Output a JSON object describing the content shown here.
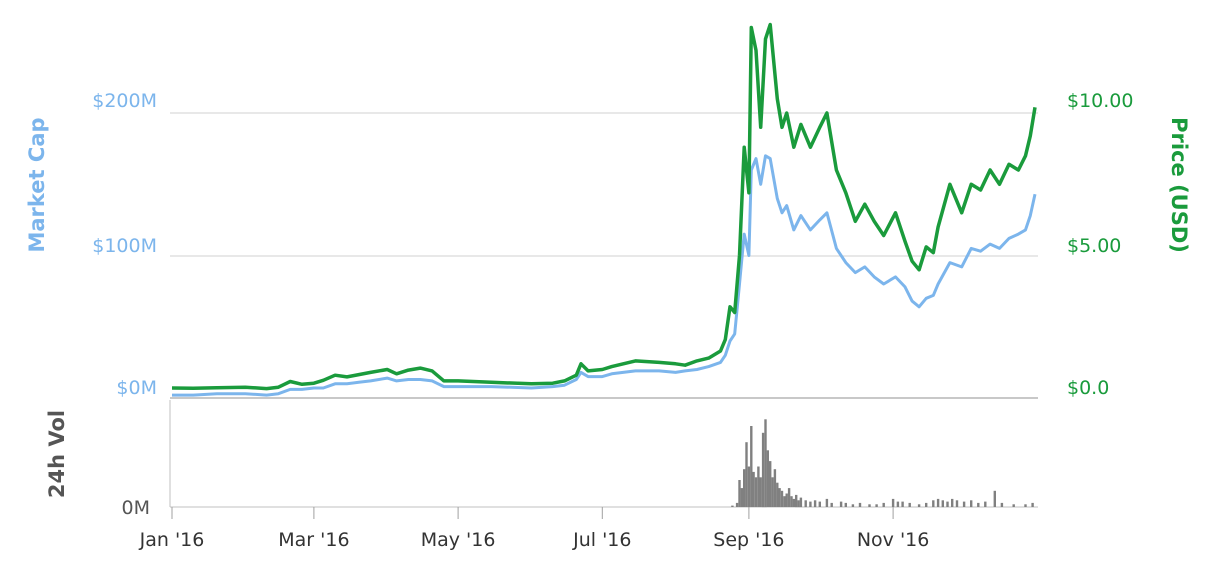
{
  "chart_data": {
    "type": "line",
    "x_range": [
      "2016-01-01",
      "2016-12-31"
    ],
    "y_left": {
      "label": "Market Cap",
      "ticks": [
        "$0M",
        "$100M",
        "$200M"
      ],
      "tick_values": [
        0,
        100,
        200
      ],
      "unit": "M USD",
      "range": [
        0,
        200
      ]
    },
    "y_right": {
      "label": "Price (USD)",
      "ticks": [
        "$0.0",
        "$5.00",
        "$10.00"
      ],
      "tick_values": [
        0,
        5,
        10
      ],
      "range": [
        0,
        10
      ]
    },
    "volume_axis": {
      "label": "24h Vol",
      "ticks": [
        "0M"
      ]
    },
    "x_ticks": [
      {
        "label": "Jan '16",
        "date": "2016-01-01"
      },
      {
        "label": "Mar '16",
        "date": "2016-03-01"
      },
      {
        "label": "May '16",
        "date": "2016-05-01"
      },
      {
        "label": "Jul '16",
        "date": "2016-07-01"
      },
      {
        "label": "Sep '16",
        "date": "2016-09-01"
      },
      {
        "label": "Nov '16",
        "date": "2016-11-01"
      }
    ],
    "colors": {
      "market_cap": "#7cb5ec",
      "price": "#1a9b3c",
      "volume": "#808080",
      "left_axis_text": "#7cb5ec",
      "right_axis_text": "#1a9b3c",
      "volume_axis_text": "#555555"
    },
    "series": [
      {
        "key": "price",
        "axis": "right",
        "points": [
          [
            "2016-01-01",
            0.35
          ],
          [
            "2016-01-10",
            0.34
          ],
          [
            "2016-01-20",
            0.36
          ],
          [
            "2016-02-01",
            0.38
          ],
          [
            "2016-02-10",
            0.33
          ],
          [
            "2016-02-15",
            0.38
          ],
          [
            "2016-02-20",
            0.58
          ],
          [
            "2016-02-25",
            0.48
          ],
          [
            "2016-03-01",
            0.52
          ],
          [
            "2016-03-05",
            0.62
          ],
          [
            "2016-03-10",
            0.8
          ],
          [
            "2016-03-15",
            0.74
          ],
          [
            "2016-03-20",
            0.82
          ],
          [
            "2016-03-25",
            0.9
          ],
          [
            "2016-04-01",
            1.0
          ],
          [
            "2016-04-05",
            0.85
          ],
          [
            "2016-04-10",
            0.98
          ],
          [
            "2016-04-15",
            1.05
          ],
          [
            "2016-04-20",
            0.95
          ],
          [
            "2016-04-25",
            0.6
          ],
          [
            "2016-05-01",
            0.6
          ],
          [
            "2016-05-15",
            0.55
          ],
          [
            "2016-06-01",
            0.5
          ],
          [
            "2016-06-10",
            0.52
          ],
          [
            "2016-06-15",
            0.6
          ],
          [
            "2016-06-20",
            0.8
          ],
          [
            "2016-06-22",
            1.2
          ],
          [
            "2016-06-25",
            0.95
          ],
          [
            "2016-07-01",
            1.0
          ],
          [
            "2016-07-05",
            1.1
          ],
          [
            "2016-07-15",
            1.3
          ],
          [
            "2016-07-25",
            1.25
          ],
          [
            "2016-08-01",
            1.2
          ],
          [
            "2016-08-05",
            1.15
          ],
          [
            "2016-08-10",
            1.3
          ],
          [
            "2016-08-15",
            1.4
          ],
          [
            "2016-08-20",
            1.65
          ],
          [
            "2016-08-22",
            2.05
          ],
          [
            "2016-08-24",
            3.2
          ],
          [
            "2016-08-26",
            3.0
          ],
          [
            "2016-08-28",
            5.0
          ],
          [
            "2016-08-30",
            8.8
          ],
          [
            "2016-09-01",
            7.2
          ],
          [
            "2016-09-02",
            13.0
          ],
          [
            "2016-09-04",
            12.2
          ],
          [
            "2016-09-06",
            9.5
          ],
          [
            "2016-09-08",
            12.6
          ],
          [
            "2016-09-10",
            13.1
          ],
          [
            "2016-09-13",
            10.5
          ],
          [
            "2016-09-15",
            9.5
          ],
          [
            "2016-09-17",
            10.0
          ],
          [
            "2016-09-20",
            8.8
          ],
          [
            "2016-09-23",
            9.6
          ],
          [
            "2016-09-27",
            8.8
          ],
          [
            "2016-10-01",
            9.5
          ],
          [
            "2016-10-04",
            10.0
          ],
          [
            "2016-10-08",
            8.0
          ],
          [
            "2016-10-12",
            7.2
          ],
          [
            "2016-10-16",
            6.2
          ],
          [
            "2016-10-20",
            6.8
          ],
          [
            "2016-10-24",
            6.2
          ],
          [
            "2016-10-28",
            5.7
          ],
          [
            "2016-11-02",
            6.5
          ],
          [
            "2016-11-06",
            5.5
          ],
          [
            "2016-11-09",
            4.8
          ],
          [
            "2016-11-12",
            4.5
          ],
          [
            "2016-11-15",
            5.3
          ],
          [
            "2016-11-18",
            5.1
          ],
          [
            "2016-11-20",
            6.0
          ],
          [
            "2016-11-25",
            7.5
          ],
          [
            "2016-11-30",
            6.5
          ],
          [
            "2016-12-04",
            7.5
          ],
          [
            "2016-12-08",
            7.3
          ],
          [
            "2016-12-12",
            8.0
          ],
          [
            "2016-12-16",
            7.5
          ],
          [
            "2016-12-20",
            8.2
          ],
          [
            "2016-12-24",
            8.0
          ],
          [
            "2016-12-27",
            8.5
          ],
          [
            "2016-12-29",
            9.2
          ],
          [
            "2016-12-31",
            10.2
          ]
        ]
      },
      {
        "key": "market_cap",
        "axis": "left",
        "points": [
          [
            "2016-01-01",
            2
          ],
          [
            "2016-01-10",
            2
          ],
          [
            "2016-01-20",
            3
          ],
          [
            "2016-02-01",
            3
          ],
          [
            "2016-02-10",
            2
          ],
          [
            "2016-02-15",
            3
          ],
          [
            "2016-02-20",
            6
          ],
          [
            "2016-02-25",
            6
          ],
          [
            "2016-03-01",
            7
          ],
          [
            "2016-03-05",
            7
          ],
          [
            "2016-03-10",
            10
          ],
          [
            "2016-03-15",
            10
          ],
          [
            "2016-03-20",
            11
          ],
          [
            "2016-03-25",
            12
          ],
          [
            "2016-04-01",
            14
          ],
          [
            "2016-04-05",
            12
          ],
          [
            "2016-04-10",
            13
          ],
          [
            "2016-04-15",
            13
          ],
          [
            "2016-04-20",
            12
          ],
          [
            "2016-04-25",
            8
          ],
          [
            "2016-05-01",
            8
          ],
          [
            "2016-05-15",
            8
          ],
          [
            "2016-06-01",
            7
          ],
          [
            "2016-06-10",
            8
          ],
          [
            "2016-06-15",
            9
          ],
          [
            "2016-06-20",
            13
          ],
          [
            "2016-06-22",
            18
          ],
          [
            "2016-06-25",
            15
          ],
          [
            "2016-07-01",
            15
          ],
          [
            "2016-07-05",
            17
          ],
          [
            "2016-07-15",
            19
          ],
          [
            "2016-07-25",
            19
          ],
          [
            "2016-08-01",
            18
          ],
          [
            "2016-08-05",
            19
          ],
          [
            "2016-08-10",
            20
          ],
          [
            "2016-08-15",
            22
          ],
          [
            "2016-08-20",
            25
          ],
          [
            "2016-08-22",
            30
          ],
          [
            "2016-08-24",
            40
          ],
          [
            "2016-08-26",
            45
          ],
          [
            "2016-08-28",
            80
          ],
          [
            "2016-08-30",
            115
          ],
          [
            "2016-09-01",
            100
          ],
          [
            "2016-09-02",
            160
          ],
          [
            "2016-09-04",
            168
          ],
          [
            "2016-09-06",
            150
          ],
          [
            "2016-09-08",
            170
          ],
          [
            "2016-09-10",
            168
          ],
          [
            "2016-09-13",
            140
          ],
          [
            "2016-09-15",
            130
          ],
          [
            "2016-09-17",
            135
          ],
          [
            "2016-09-20",
            118
          ],
          [
            "2016-09-23",
            128
          ],
          [
            "2016-09-27",
            118
          ],
          [
            "2016-10-01",
            125
          ],
          [
            "2016-10-04",
            130
          ],
          [
            "2016-10-08",
            105
          ],
          [
            "2016-10-12",
            95
          ],
          [
            "2016-10-16",
            88
          ],
          [
            "2016-10-20",
            92
          ],
          [
            "2016-10-24",
            85
          ],
          [
            "2016-10-28",
            80
          ],
          [
            "2016-11-02",
            85
          ],
          [
            "2016-11-06",
            78
          ],
          [
            "2016-11-09",
            68
          ],
          [
            "2016-11-12",
            64
          ],
          [
            "2016-11-15",
            70
          ],
          [
            "2016-11-18",
            72
          ],
          [
            "2016-11-20",
            80
          ],
          [
            "2016-11-25",
            95
          ],
          [
            "2016-11-30",
            92
          ],
          [
            "2016-12-04",
            105
          ],
          [
            "2016-12-08",
            103
          ],
          [
            "2016-12-12",
            108
          ],
          [
            "2016-12-16",
            105
          ],
          [
            "2016-12-20",
            112
          ],
          [
            "2016-12-24",
            115
          ],
          [
            "2016-12-27",
            118
          ],
          [
            "2016-12-29",
            128
          ],
          [
            "2016-12-31",
            143
          ]
        ]
      }
    ],
    "volume_bars": [
      [
        "2016-08-25",
        1
      ],
      [
        "2016-08-27",
        3
      ],
      [
        "2016-08-28",
        20
      ],
      [
        "2016-08-29",
        14
      ],
      [
        "2016-08-30",
        28
      ],
      [
        "2016-08-31",
        48
      ],
      [
        "2016-09-01",
        30
      ],
      [
        "2016-09-02",
        60
      ],
      [
        "2016-09-03",
        26
      ],
      [
        "2016-09-04",
        22
      ],
      [
        "2016-09-05",
        30
      ],
      [
        "2016-09-06",
        22
      ],
      [
        "2016-09-07",
        55
      ],
      [
        "2016-09-08",
        65
      ],
      [
        "2016-09-09",
        42
      ],
      [
        "2016-09-10",
        34
      ],
      [
        "2016-09-11",
        22
      ],
      [
        "2016-09-12",
        28
      ],
      [
        "2016-09-13",
        18
      ],
      [
        "2016-09-14",
        14
      ],
      [
        "2016-09-15",
        12
      ],
      [
        "2016-09-16",
        8
      ],
      [
        "2016-09-17",
        10
      ],
      [
        "2016-09-18",
        14
      ],
      [
        "2016-09-19",
        8
      ],
      [
        "2016-09-20",
        6
      ],
      [
        "2016-09-21",
        9
      ],
      [
        "2016-09-22",
        5
      ],
      [
        "2016-09-23",
        7
      ],
      [
        "2016-09-25",
        5
      ],
      [
        "2016-09-27",
        4
      ],
      [
        "2016-09-29",
        5
      ],
      [
        "2016-10-01",
        4
      ],
      [
        "2016-10-04",
        6
      ],
      [
        "2016-10-06",
        3
      ],
      [
        "2016-10-10",
        4
      ],
      [
        "2016-10-12",
        3
      ],
      [
        "2016-10-15",
        2
      ],
      [
        "2016-10-18",
        3
      ],
      [
        "2016-10-22",
        2
      ],
      [
        "2016-10-25",
        2
      ],
      [
        "2016-10-28",
        3
      ],
      [
        "2016-11-01",
        6
      ],
      [
        "2016-11-03",
        4
      ],
      [
        "2016-11-05",
        4
      ],
      [
        "2016-11-08",
        3
      ],
      [
        "2016-11-12",
        2
      ],
      [
        "2016-11-15",
        3
      ],
      [
        "2016-11-18",
        5
      ],
      [
        "2016-11-20",
        6
      ],
      [
        "2016-11-22",
        5
      ],
      [
        "2016-11-24",
        4
      ],
      [
        "2016-11-26",
        6
      ],
      [
        "2016-11-28",
        5
      ],
      [
        "2016-12-01",
        4
      ],
      [
        "2016-12-04",
        5
      ],
      [
        "2016-12-07",
        3
      ],
      [
        "2016-12-10",
        4
      ],
      [
        "2016-12-14",
        12
      ],
      [
        "2016-12-17",
        3
      ],
      [
        "2016-12-22",
        2
      ],
      [
        "2016-12-27",
        2
      ],
      [
        "2016-12-30",
        3
      ]
    ]
  }
}
